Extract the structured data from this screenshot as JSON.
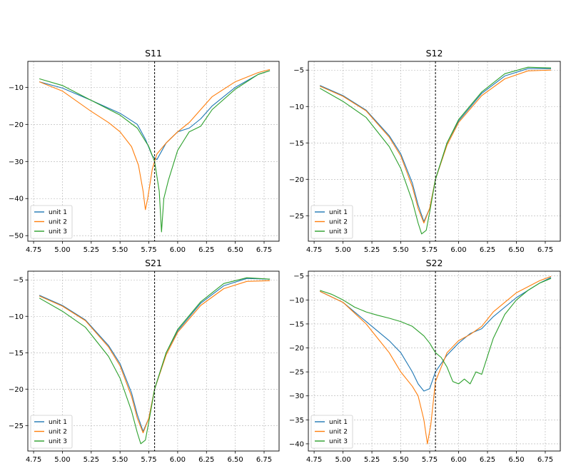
{
  "chart_data": [
    {
      "type": "line",
      "title": "S11",
      "xlim": [
        4.7,
        6.88
      ],
      "ylim": [
        -51.5,
        -3
      ],
      "x_ticks": [
        4.75,
        5.0,
        5.25,
        5.5,
        5.75,
        6.0,
        6.25,
        6.5,
        6.75
      ],
      "x_tick_labels": [
        "4.75",
        "5.00",
        "5.25",
        "5.50",
        "5.75",
        "6.00",
        "6.25",
        "6.50",
        "6.75"
      ],
      "y_ticks": [
        -50,
        -40,
        -30,
        -20,
        -10
      ],
      "y_tick_labels": [
        "−50",
        "−40",
        "−30",
        "−20",
        "−10"
      ],
      "vline_x": 5.8,
      "grid": true,
      "legend_position": "lower-left",
      "series": [
        {
          "name": "unit 1",
          "color": "#1f77b4",
          "points": [
            [
              4.8,
              -8.5
            ],
            [
              5.0,
              -10.2
            ],
            [
              5.25,
              -13.5
            ],
            [
              5.5,
              -17
            ],
            [
              5.65,
              -20
            ],
            [
              5.72,
              -24
            ],
            [
              5.78,
              -28.5
            ],
            [
              5.82,
              -29.5
            ],
            [
              5.9,
              -25
            ],
            [
              6.0,
              -22
            ],
            [
              6.1,
              -21
            ],
            [
              6.2,
              -18.5
            ],
            [
              6.3,
              -15
            ],
            [
              6.5,
              -10
            ],
            [
              6.7,
              -6.5
            ],
            [
              6.8,
              -5.5
            ]
          ]
        },
        {
          "name": "unit 2",
          "color": "#ff7f0e",
          "points": [
            [
              4.8,
              -8.5
            ],
            [
              5.0,
              -11
            ],
            [
              5.25,
              -16.5
            ],
            [
              5.4,
              -19.5
            ],
            [
              5.5,
              -22
            ],
            [
              5.6,
              -26
            ],
            [
              5.66,
              -31
            ],
            [
              5.7,
              -38
            ],
            [
              5.72,
              -43
            ],
            [
              5.74,
              -40
            ],
            [
              5.78,
              -32
            ],
            [
              5.82,
              -28
            ],
            [
              5.9,
              -25
            ],
            [
              6.0,
              -22
            ],
            [
              6.1,
              -19.5
            ],
            [
              6.2,
              -16
            ],
            [
              6.3,
              -12.5
            ],
            [
              6.5,
              -8.5
            ],
            [
              6.7,
              -6
            ],
            [
              6.8,
              -5.2
            ]
          ]
        },
        {
          "name": "unit 3",
          "color": "#2ca02c",
          "points": [
            [
              4.8,
              -7.7
            ],
            [
              5.0,
              -9.5
            ],
            [
              5.25,
              -13.5
            ],
            [
              5.5,
              -17.5
            ],
            [
              5.65,
              -21
            ],
            [
              5.75,
              -26
            ],
            [
              5.8,
              -30
            ],
            [
              5.84,
              -38
            ],
            [
              5.86,
              -49
            ],
            [
              5.88,
              -40
            ],
            [
              5.92,
              -35
            ],
            [
              6.0,
              -27
            ],
            [
              6.1,
              -22
            ],
            [
              6.2,
              -20.5
            ],
            [
              6.3,
              -16
            ],
            [
              6.5,
              -10.5
            ],
            [
              6.7,
              -6.5
            ],
            [
              6.8,
              -5.5
            ]
          ]
        }
      ]
    },
    {
      "type": "line",
      "title": "S12",
      "xlim": [
        4.7,
        6.88
      ],
      "ylim": [
        -28.5,
        -3.8
      ],
      "x_ticks": [
        4.75,
        5.0,
        5.25,
        5.5,
        5.75,
        6.0,
        6.25,
        6.5,
        6.75
      ],
      "x_tick_labels": [
        "4.75",
        "5.00",
        "5.25",
        "5.50",
        "5.75",
        "6.00",
        "6.25",
        "6.50",
        "6.75"
      ],
      "y_ticks": [
        -25,
        -20,
        -15,
        -10,
        -5
      ],
      "y_tick_labels": [
        "−25",
        "−20",
        "−15",
        "−10",
        "−5"
      ],
      "vline_x": 5.8,
      "grid": true,
      "legend_position": "lower-left",
      "series": [
        {
          "name": "unit 1",
          "color": "#1f77b4",
          "points": [
            [
              4.8,
              -7.1
            ],
            [
              5.0,
              -8.5
            ],
            [
              5.2,
              -10.5
            ],
            [
              5.4,
              -14
            ],
            [
              5.5,
              -16.5
            ],
            [
              5.6,
              -20.5
            ],
            [
              5.65,
              -23.5
            ],
            [
              5.7,
              -25.8
            ],
            [
              5.75,
              -24
            ],
            [
              5.8,
              -20
            ],
            [
              5.9,
              -15
            ],
            [
              6.0,
              -12
            ],
            [
              6.2,
              -8.2
            ],
            [
              6.4,
              -5.8
            ],
            [
              6.6,
              -4.8
            ],
            [
              6.8,
              -4.8
            ]
          ]
        },
        {
          "name": "unit 2",
          "color": "#ff7f0e",
          "points": [
            [
              4.8,
              -7.2
            ],
            [
              5.0,
              -8.6
            ],
            [
              5.2,
              -10.6
            ],
            [
              5.4,
              -14.2
            ],
            [
              5.5,
              -16.8
            ],
            [
              5.6,
              -21
            ],
            [
              5.65,
              -24
            ],
            [
              5.7,
              -26
            ],
            [
              5.75,
              -24
            ],
            [
              5.8,
              -20
            ],
            [
              5.9,
              -15.3
            ],
            [
              6.0,
              -12.2
            ],
            [
              6.2,
              -8.5
            ],
            [
              6.4,
              -6.2
            ],
            [
              6.6,
              -5.1
            ],
            [
              6.8,
              -5.0
            ]
          ]
        },
        {
          "name": "unit 3",
          "color": "#2ca02c",
          "points": [
            [
              4.8,
              -7.5
            ],
            [
              5.0,
              -9.3
            ],
            [
              5.2,
              -11.5
            ],
            [
              5.4,
              -15.5
            ],
            [
              5.5,
              -18.5
            ],
            [
              5.6,
              -23
            ],
            [
              5.65,
              -26
            ],
            [
              5.68,
              -27.5
            ],
            [
              5.72,
              -27
            ],
            [
              5.75,
              -24.5
            ],
            [
              5.8,
              -20
            ],
            [
              5.9,
              -15
            ],
            [
              6.0,
              -11.8
            ],
            [
              6.2,
              -8
            ],
            [
              6.4,
              -5.5
            ],
            [
              6.6,
              -4.6
            ],
            [
              6.8,
              -4.7
            ]
          ]
        }
      ]
    },
    {
      "type": "line",
      "title": "S21",
      "xlim": [
        4.7,
        6.88
      ],
      "ylim": [
        -28.5,
        -3.8
      ],
      "x_ticks": [
        4.75,
        5.0,
        5.25,
        5.5,
        5.75,
        6.0,
        6.25,
        6.5,
        6.75
      ],
      "x_tick_labels": [
        "4.75",
        "5.00",
        "5.25",
        "5.50",
        "5.75",
        "6.00",
        "6.25",
        "6.50",
        "6.75"
      ],
      "y_ticks": [
        -25,
        -20,
        -15,
        -10,
        -5
      ],
      "y_tick_labels": [
        "−25",
        "−20",
        "−15",
        "−10",
        "−5"
      ],
      "vline_x": 5.8,
      "grid": true,
      "legend_position": "lower-left",
      "series": [
        {
          "name": "unit 1",
          "color": "#1f77b4",
          "points": [
            [
              4.8,
              -7.1
            ],
            [
              5.0,
              -8.5
            ],
            [
              5.2,
              -10.5
            ],
            [
              5.4,
              -14
            ],
            [
              5.5,
              -16.5
            ],
            [
              5.6,
              -20.5
            ],
            [
              5.65,
              -23.5
            ],
            [
              5.7,
              -25.8
            ],
            [
              5.75,
              -24
            ],
            [
              5.8,
              -20
            ],
            [
              5.9,
              -15
            ],
            [
              6.0,
              -12
            ],
            [
              6.2,
              -8.2
            ],
            [
              6.4,
              -5.8
            ],
            [
              6.6,
              -4.8
            ],
            [
              6.8,
              -4.9
            ]
          ]
        },
        {
          "name": "unit 2",
          "color": "#ff7f0e",
          "points": [
            [
              4.8,
              -7.2
            ],
            [
              5.0,
              -8.6
            ],
            [
              5.2,
              -10.6
            ],
            [
              5.4,
              -14.2
            ],
            [
              5.5,
              -16.8
            ],
            [
              5.6,
              -21
            ],
            [
              5.65,
              -24
            ],
            [
              5.7,
              -26
            ],
            [
              5.75,
              -24
            ],
            [
              5.8,
              -20
            ],
            [
              5.9,
              -15.3
            ],
            [
              6.0,
              -12.2
            ],
            [
              6.2,
              -8.5
            ],
            [
              6.4,
              -6.2
            ],
            [
              6.6,
              -5.2
            ],
            [
              6.8,
              -5.1
            ]
          ]
        },
        {
          "name": "unit 3",
          "color": "#2ca02c",
          "points": [
            [
              4.8,
              -7.5
            ],
            [
              5.0,
              -9.3
            ],
            [
              5.2,
              -11.5
            ],
            [
              5.4,
              -15.5
            ],
            [
              5.5,
              -18.5
            ],
            [
              5.6,
              -23
            ],
            [
              5.65,
              -26
            ],
            [
              5.68,
              -27.5
            ],
            [
              5.72,
              -27
            ],
            [
              5.75,
              -24.5
            ],
            [
              5.8,
              -20
            ],
            [
              5.9,
              -15
            ],
            [
              6.0,
              -11.8
            ],
            [
              6.2,
              -8
            ],
            [
              6.4,
              -5.5
            ],
            [
              6.6,
              -4.7
            ],
            [
              6.8,
              -4.9
            ]
          ]
        }
      ]
    },
    {
      "type": "line",
      "title": "S22",
      "xlim": [
        4.7,
        6.88
      ],
      "ylim": [
        -41.5,
        -4
      ],
      "x_ticks": [
        4.75,
        5.0,
        5.25,
        5.5,
        5.75,
        6.0,
        6.25,
        6.5,
        6.75
      ],
      "x_tick_labels": [
        "4.75",
        "5.00",
        "5.25",
        "5.50",
        "5.75",
        "6.00",
        "6.25",
        "6.50",
        "6.75"
      ],
      "y_ticks": [
        -40,
        -35,
        -30,
        -25,
        -20,
        -15,
        -10,
        -5
      ],
      "y_tick_labels": [
        "−40",
        "−35",
        "−30",
        "−25",
        "−20",
        "−15",
        "−10",
        "−5"
      ],
      "vline_x": 5.8,
      "grid": true,
      "legend_position": "lower-left",
      "series": [
        {
          "name": "unit 1",
          "color": "#1f77b4",
          "points": [
            [
              4.8,
              -8.2
            ],
            [
              5.0,
              -10.5
            ],
            [
              5.2,
              -14.5
            ],
            [
              5.4,
              -18.5
            ],
            [
              5.5,
              -21
            ],
            [
              5.6,
              -25
            ],
            [
              5.65,
              -27.5
            ],
            [
              5.7,
              -29
            ],
            [
              5.75,
              -28.5
            ],
            [
              5.8,
              -25
            ],
            [
              5.9,
              -21.5
            ],
            [
              6.0,
              -19
            ],
            [
              6.1,
              -17
            ],
            [
              6.2,
              -16
            ],
            [
              6.3,
              -13.5
            ],
            [
              6.5,
              -9.5
            ],
            [
              6.7,
              -6.5
            ],
            [
              6.8,
              -5.3
            ]
          ]
        },
        {
          "name": "unit 2",
          "color": "#ff7f0e",
          "points": [
            [
              4.8,
              -8.2
            ],
            [
              5.0,
              -10.5
            ],
            [
              5.2,
              -15
            ],
            [
              5.3,
              -18
            ],
            [
              5.4,
              -21
            ],
            [
              5.5,
              -25
            ],
            [
              5.6,
              -28
            ],
            [
              5.65,
              -30
            ],
            [
              5.7,
              -35
            ],
            [
              5.73,
              -40
            ],
            [
              5.76,
              -36
            ],
            [
              5.8,
              -27
            ],
            [
              5.9,
              -21
            ],
            [
              6.0,
              -18.5
            ],
            [
              6.1,
              -17.2
            ],
            [
              6.2,
              -15.5
            ],
            [
              6.3,
              -12.5
            ],
            [
              6.5,
              -8.5
            ],
            [
              6.7,
              -6
            ],
            [
              6.8,
              -5.1
            ]
          ]
        },
        {
          "name": "unit 3",
          "color": "#2ca02c",
          "points": [
            [
              4.8,
              -8.0
            ],
            [
              4.9,
              -8.8
            ],
            [
              5.0,
              -10
            ],
            [
              5.1,
              -11.5
            ],
            [
              5.2,
              -12.5
            ],
            [
              5.3,
              -13.2
            ],
            [
              5.4,
              -13.8
            ],
            [
              5.5,
              -14.5
            ],
            [
              5.6,
              -15.5
            ],
            [
              5.7,
              -17.5
            ],
            [
              5.75,
              -19
            ],
            [
              5.8,
              -21
            ],
            [
              5.85,
              -22
            ],
            [
              5.9,
              -24
            ],
            [
              5.95,
              -27
            ],
            [
              6.0,
              -27.5
            ],
            [
              6.05,
              -26.5
            ],
            [
              6.1,
              -27.5
            ],
            [
              6.15,
              -25
            ],
            [
              6.2,
              -25.5
            ],
            [
              6.3,
              -18
            ],
            [
              6.4,
              -13
            ],
            [
              6.5,
              -10
            ],
            [
              6.6,
              -8
            ],
            [
              6.7,
              -6.5
            ],
            [
              6.8,
              -5.5
            ]
          ]
        }
      ]
    }
  ]
}
